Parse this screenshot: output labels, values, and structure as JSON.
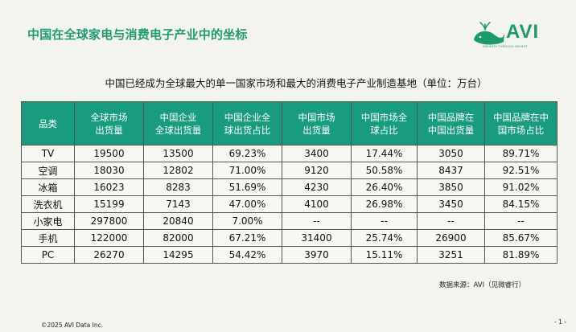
{
  "header": {
    "title": "中国在全球家电与消费电子产业中的坐标",
    "logo_text": "AVI",
    "logo_tagline": "INSIGHTS THROUGH INSIGHT"
  },
  "subtitle": "中国已经成为全球最大的单一国家市场和最大的消费电子产业制造基地（单位：万台）",
  "table": {
    "headers": [
      "品类",
      "全球市场\n出货量",
      "中国企业\n全球出货量",
      "中国企业全\n球出货占比",
      "中国市场\n出货量",
      "中国市场全\n球占比",
      "中国品牌在\n中国出货量",
      "中国品牌在中\n国市场占比"
    ],
    "rows": [
      [
        "TV",
        "19500",
        "13500",
        "69.23%",
        "3400",
        "17.44%",
        "3050",
        "89.71%"
      ],
      [
        "空调",
        "18030",
        "12802",
        "71.00%",
        "9120",
        "50.58%",
        "8437",
        "92.51%"
      ],
      [
        "冰箱",
        "16023",
        "8283",
        "51.69%",
        "4230",
        "26.40%",
        "3850",
        "91.02%"
      ],
      [
        "洗衣机",
        "15199",
        "7143",
        "47.00%",
        "4100",
        "26.98%",
        "3450",
        "84.15%"
      ],
      [
        "小家电",
        "297800",
        "20840",
        "7.00%",
        "--",
        "--",
        "--",
        "--"
      ],
      [
        "手机",
        "122000",
        "82000",
        "67.21%",
        "31400",
        "25.74%",
        "26900",
        "85.67%"
      ],
      [
        "PC",
        "26270",
        "14295",
        "54.42%",
        "3970",
        "15.11%",
        "3251",
        "81.89%"
      ]
    ]
  },
  "footer": {
    "source": "数据来源：AVI（见微睿行）",
    "copyright": "©2025 AVI Data Inc.",
    "page": "- 1 -"
  },
  "colors": {
    "accent": "#1f9a72",
    "header_bg": "#199b80",
    "background": "#f4f4ef"
  }
}
